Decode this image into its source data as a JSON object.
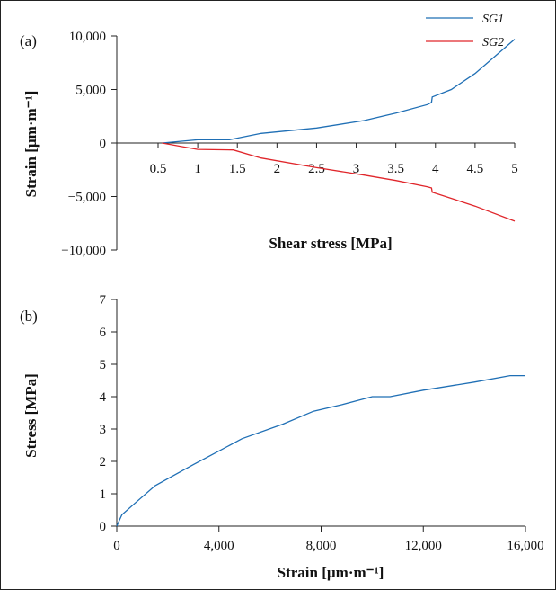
{
  "chart_data": [
    {
      "type": "line",
      "panel_label": "(a)",
      "xlabel": "Shear stress [MPa]",
      "ylabel": "Strain [µm·m⁻¹]",
      "xlim": [
        0.5,
        5
      ],
      "ylim": [
        -10000,
        10000
      ],
      "x_ticks": [
        {
          "v": 0.5,
          "label": "0.5"
        },
        {
          "v": 1,
          "label": "1"
        },
        {
          "v": 1.5,
          "label": "1.5"
        },
        {
          "v": 2,
          "label": "2"
        },
        {
          "v": 2.5,
          "label": "2.5"
        },
        {
          "v": 3,
          "label": "3"
        },
        {
          "v": 3.5,
          "label": "3.5"
        },
        {
          "v": 4,
          "label": "4"
        },
        {
          "v": 4.5,
          "label": "4.5"
        },
        {
          "v": 5,
          "label": "5"
        }
      ],
      "y_ticks": [
        {
          "v": 10000,
          "label": "10,000"
        },
        {
          "v": 5000,
          "label": "5,000"
        },
        {
          "v": 0,
          "label": "0"
        },
        {
          "v": -5000,
          "label": "−5,000"
        },
        {
          "v": -10000,
          "label": "−10,000"
        }
      ],
      "legend_position": "top-right",
      "series": [
        {
          "name": "SG1",
          "color": "#1f6fb5",
          "points": [
            [
              0.55,
              0
            ],
            [
              1.0,
              300
            ],
            [
              1.4,
              300
            ],
            [
              1.8,
              900
            ],
            [
              2.5,
              1400
            ],
            [
              3.1,
              2100
            ],
            [
              3.5,
              2800
            ],
            [
              3.9,
              3600
            ],
            [
              3.95,
              3800
            ],
            [
              3.96,
              4300
            ],
            [
              4.2,
              5000
            ],
            [
              4.5,
              6500
            ],
            [
              5.0,
              9700
            ]
          ]
        },
        {
          "name": "SG2",
          "color": "#e0262b",
          "points": [
            [
              0.55,
              0
            ],
            [
              1.0,
              -600
            ],
            [
              1.45,
              -650
            ],
            [
              1.8,
              -1400
            ],
            [
              2.5,
              -2300
            ],
            [
              3.1,
              -3000
            ],
            [
              3.5,
              -3500
            ],
            [
              3.9,
              -4100
            ],
            [
              3.95,
              -4200
            ],
            [
              3.96,
              -4600
            ],
            [
              4.5,
              -5900
            ],
            [
              5.0,
              -7300
            ]
          ]
        }
      ]
    },
    {
      "type": "line",
      "panel_label": "(b)",
      "xlabel": "Strain [µm·m⁻¹]",
      "ylabel": "Stress [MPa]",
      "xlim": [
        0,
        16000
      ],
      "ylim": [
        0,
        7
      ],
      "x_ticks": [
        {
          "v": 0,
          "label": "0"
        },
        {
          "v": 4000,
          "label": "4,000"
        },
        {
          "v": 8000,
          "label": "8,000"
        },
        {
          "v": 12000,
          "label": "12,000"
        },
        {
          "v": 16000,
          "label": "16,000"
        }
      ],
      "y_ticks": [
        {
          "v": 0,
          "label": "0"
        },
        {
          "v": 1,
          "label": "1"
        },
        {
          "v": 2,
          "label": "2"
        },
        {
          "v": 3,
          "label": "3"
        },
        {
          "v": 4,
          "label": "4"
        },
        {
          "v": 5,
          "label": "5"
        },
        {
          "v": 6,
          "label": "6"
        },
        {
          "v": 7,
          "label": "7"
        }
      ],
      "series": [
        {
          "color": "#1f6fb5",
          "points": [
            [
              0,
              0
            ],
            [
              200,
              0.35
            ],
            [
              700,
              0.7
            ],
            [
              1500,
              1.25
            ],
            [
              3000,
              1.9
            ],
            [
              4900,
              2.7
            ],
            [
              6500,
              3.15
            ],
            [
              7700,
              3.55
            ],
            [
              8800,
              3.75
            ],
            [
              10000,
              4.0
            ],
            [
              10700,
              4.0
            ],
            [
              12000,
              4.2
            ],
            [
              14000,
              4.45
            ],
            [
              15400,
              4.65
            ],
            [
              16000,
              4.65
            ]
          ]
        }
      ]
    }
  ]
}
